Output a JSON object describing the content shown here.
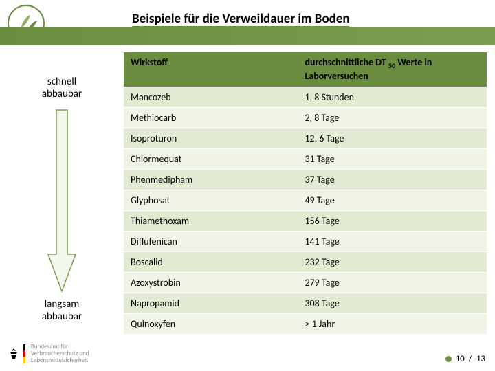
{
  "title": "Beispiele für die Verweildauer im Boden",
  "table": {
    "header_col1": "Wirkstoff",
    "header_col2_pre": "durchschnittliche DT",
    "header_col2_sub": "50",
    "header_col2_post": " Werte in Laborversuchen",
    "rows": [
      {
        "wirkstoff": "Mancozeb",
        "wert": "1, 8 Stunden"
      },
      {
        "wirkstoff": "Methiocarb",
        "wert": "2, 8 Tage"
      },
      {
        "wirkstoff": "Isoproturon",
        "wert": "12, 6 Tage"
      },
      {
        "wirkstoff": "Chlormequat",
        "wert": "31 Tage"
      },
      {
        "wirkstoff": "Phenmedipham",
        "wert": "37 Tage"
      },
      {
        "wirkstoff": "Glyphosat",
        "wert": "49 Tage"
      },
      {
        "wirkstoff": "Thiamethoxam",
        "wert": "156 Tage"
      },
      {
        "wirkstoff": "Diflufenican",
        "wert": "141 Tage"
      },
      {
        "wirkstoff": "Boscalid",
        "wert": "232 Tage"
      },
      {
        "wirkstoff": "Azoxystrobin",
        "wert": "279 Tage"
      },
      {
        "wirkstoff": "Napropamid",
        "wert": "308 Tage"
      },
      {
        "wirkstoff": "Quinoxyfen",
        "wert": "> 1 Jahr"
      }
    ]
  },
  "labels": {
    "fast_l1": "schnell",
    "fast_l2": "abbaubar",
    "slow_l1": "langsam",
    "slow_l2": "abbaubar"
  },
  "footer": {
    "line1": "Bundesamt für",
    "line2": "Verbraucherschutz und",
    "line3": "Lebensmittelsicherheit"
  },
  "page": {
    "current": "10",
    "sep": "/",
    "total": "13"
  },
  "colors": {
    "brand_green": "#6a8d3f",
    "row_odd": "#e2ead2",
    "row_even": "#f0f4e7",
    "arrow_fill": "#f4f7ee",
    "arrow_stroke": "#7a9d4e"
  }
}
